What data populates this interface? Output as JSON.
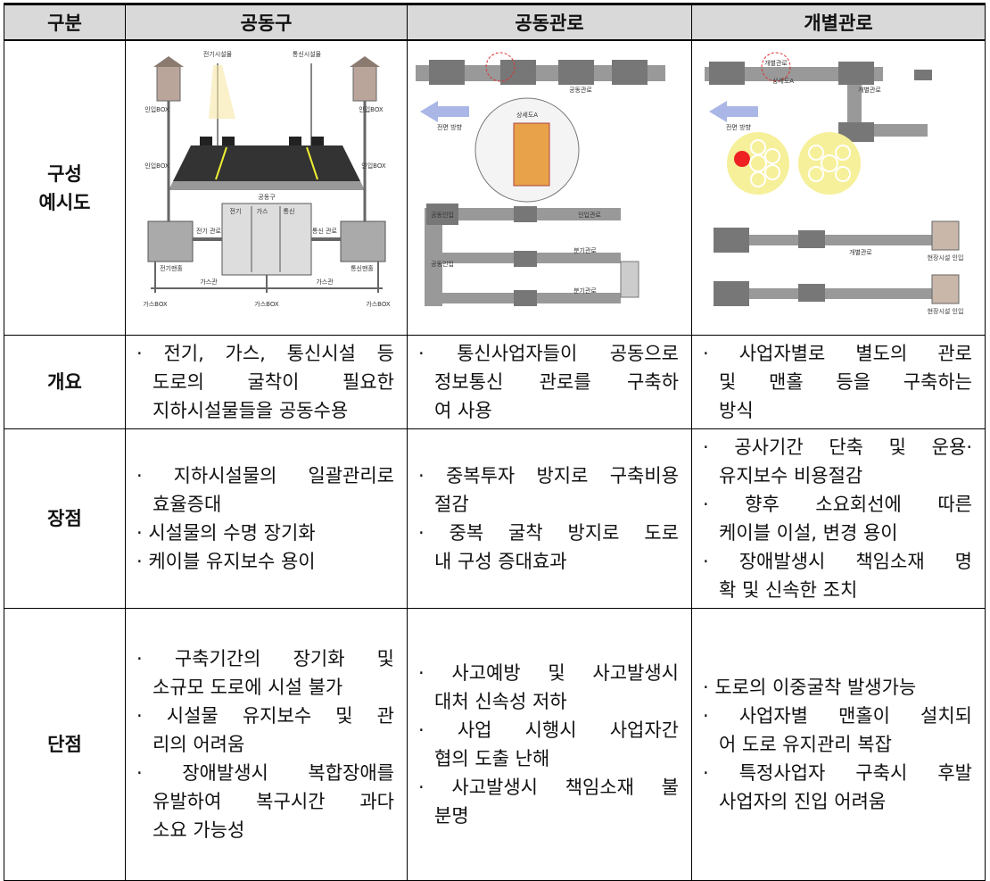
{
  "table": {
    "header": [
      "구분",
      "공동구",
      "공동관로",
      "개별관로"
    ],
    "diagram_row": {
      "label": [
        "구성",
        "예시도"
      ],
      "diagrams": [
        {
          "labels": [
            "전기시설물",
            "통신시설물",
            "인입BOX",
            "인입BOX",
            "인입BOX",
            "인입BOX",
            "공동구",
            "전기",
            "가스",
            "통신",
            "전기 관로",
            "통신 관로",
            "전기맨홀",
            "통신맨홀",
            "가스관",
            "가스관",
            "가스BOX",
            "가스BOX",
            "가스BOX"
          ]
        },
        {
          "labels": [
            "상세도A",
            "공동관로",
            "전면 방향",
            "공동인입",
            "공동인입",
            "인입관로",
            "분기관로",
            "분기관로"
          ]
        },
        {
          "labels": [
            "개별관로",
            "상세도A",
            "전면 방향",
            "개별관로",
            "개별관로",
            "현장시설 인입",
            "현장시설 인입"
          ]
        }
      ]
    },
    "rows": [
      {
        "label": [
          "개요"
        ],
        "cells": [
          [
            [
              "· 전기, 가스, 통신시설 등",
              "도로의 굴착이 필요한",
              "지하시설물들을 공동수용"
            ]
          ],
          [
            [
              "· 통신사업자들이 공동으로",
              "정보통신 관로를 구축하",
              "여 사용"
            ]
          ],
          [
            [
              "· 사업자별로 별도의 관로",
              "및 맨홀 등을 구축하는",
              "방식"
            ]
          ]
        ]
      },
      {
        "label": [
          "장점"
        ],
        "cells": [
          [
            [
              "· 지하시설물의 일괄관리로",
              "효율증대"
            ],
            [
              "· 시설물의 수명 장기화"
            ],
            [
              "· 케이블 유지보수 용이"
            ]
          ],
          [
            [
              "· 중복투자 방지로 구축비용",
              "절감"
            ],
            [
              "· 중복 굴착 방지로 도로",
              "내 구성 증대효과"
            ]
          ],
          [
            [
              "· 공사기간 단축 및 운용·",
              "유지보수 비용절감"
            ],
            [
              "· 향후 소요회선에 따른",
              "케이블 이설, 변경 용이"
            ],
            [
              "· 장애발생시 책임소재 명",
              "확 및 신속한 조치"
            ]
          ]
        ]
      },
      {
        "label": [
          "단점"
        ],
        "cells": [
          [
            [
              "· 구축기간의 장기화 및",
              "소규모 도로에 시설 불가"
            ],
            [
              "· 시설물 유지보수 및 관",
              "리의 어려움"
            ],
            [
              "· 장애발생시 복합장애를",
              "유발하여 복구시간 과다",
              "소요 가능성"
            ]
          ],
          [
            [
              "· 사고예방 및 사고발생시",
              "대처 신속성 저하"
            ],
            [
              "· 사업 시행시 사업자간",
              "협의 도출 난해"
            ],
            [
              "· 사고발생시 책임소재 불",
              "분명"
            ]
          ],
          [
            [
              "· 도로의 이중굴착 발생가능"
            ],
            [
              "· 사업자별 맨홀이 설치되",
              "어 도로 유지관리 복잡"
            ],
            [
              "· 특정사업자 구축시 후발",
              "사업자의 진입 어려움"
            ]
          ]
        ]
      }
    ]
  }
}
